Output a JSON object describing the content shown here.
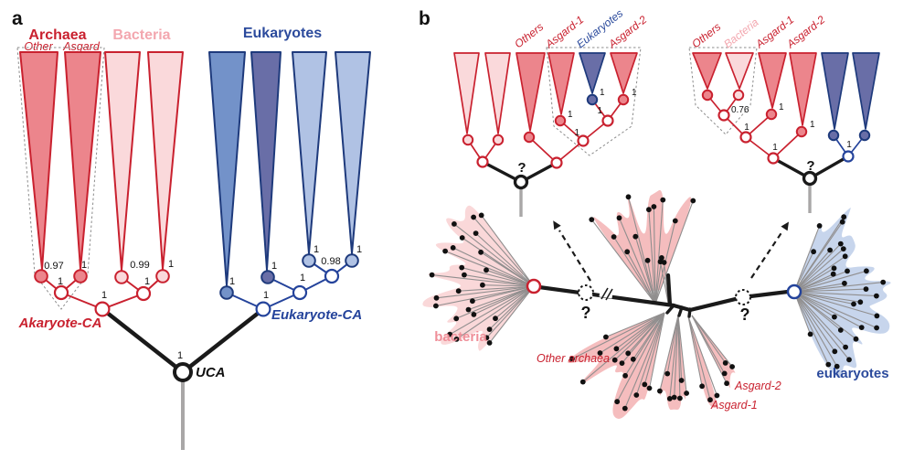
{
  "figure": {
    "panel_a_label": "a",
    "panel_b_label": "b"
  },
  "panel_a": {
    "group_archaea": "Archaea",
    "group_bacteria": "Bacteria",
    "group_eukaryotes": "Eukaryotes",
    "archaea_other": "Other",
    "archaea_asgard": "Asgard",
    "support_archaea_other": "0.97",
    "support_archaea_asgard": "1",
    "support_archaea_pair": "1",
    "support_bacteria_1": "0.99",
    "support_bacteria_2": "1",
    "support_bacteria_pair": "1",
    "support_akaryote_ca": "1",
    "support_euk_1": "1",
    "support_euk_2": "1",
    "support_euk_3": "1",
    "support_euk_4": "1",
    "support_euk_34": "0.98",
    "support_euk_234": "1",
    "support_eukaryote_ca": "1",
    "support_uca": "1",
    "label_akaryote_ca": "Akaryote-CA",
    "label_eukaryote_ca": "Eukaryote-CA",
    "label_uca": "UCA"
  },
  "panel_b": {
    "left_tree": {
      "label_others": "Others",
      "label_asgard1": "Asgard-1",
      "label_eukaryotes": "Eukaryotes",
      "label_asgard2": "Asgard-2",
      "support_asgard1": "1",
      "support_eukaryotes": "1",
      "support_asgard2": "1",
      "support_euk_asgard2": "1",
      "support_asgard1_clade": "1",
      "root_question": "?"
    },
    "right_tree": {
      "label_others": "Others",
      "label_bacteria": "Bacteria",
      "label_asgard1": "Asgard-1",
      "label_asgard2": "Asgard-2",
      "support_others_bacteria": "0.76",
      "support_asgard1": "1",
      "support_clade_a1": "1",
      "support_asgard2": "1",
      "support_clade_a2": "1",
      "support_euk_pair": "1",
      "root_question": "?"
    },
    "unrooted_tree": {
      "label_bacteria": "bacteria",
      "label_other_archaea": "Other archaea",
      "label_asgard1": "Asgard-1",
      "label_asgard2": "Asgard-2",
      "label_eukaryotes": "eukaryotes",
      "question_left": "?",
      "question_right": "?"
    }
  },
  "colors": {
    "crimson": "#c9212f",
    "salmon_fill": "#ec858c",
    "light_pink_fill": "#fad9db",
    "pink_label": "#f3a7af",
    "navy": "#1e3a7c",
    "blue_label": "#2b4a9c",
    "medium_blue_fill": "#7392c9",
    "slate_blue_fill": "#696ea7",
    "light_blue_fill": "#b0c2e4",
    "blob_archaea": "#f5bdbe",
    "blob_bacteria": "#fad8d9",
    "blob_eukaryote": "#c7d5ec",
    "root_gray": "#a9a7a7",
    "black": "#1a1a1a"
  }
}
